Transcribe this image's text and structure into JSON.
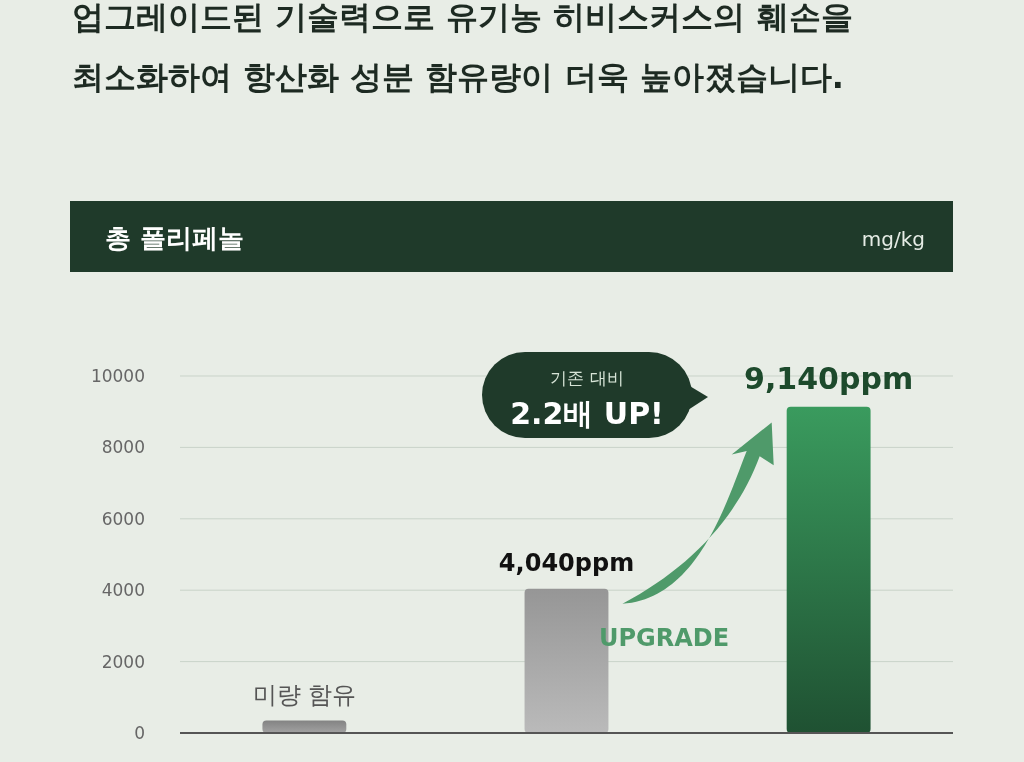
{
  "chart_data": {
    "type": "bar",
    "title": "업그레이드된 기술력으로 유기농 히비스커스의 훼손을",
    "subtitle": "최소화하여 항산화 성분 함유량이 더욱 높아졌습니다.",
    "categories": [
      null,
      null,
      null
    ],
    "values": [
      350,
      4040,
      9140
    ],
    "colors": [
      "#7a7a7a",
      "#8c8c8c",
      "#2f7d4c"
    ],
    "value_labels": [
      "미량 함유",
      "4,040ppm",
      "9,140ppm"
    ],
    "ylim": [
      0,
      10000
    ],
    "yticks": [
      0,
      2000,
      4000,
      6000,
      8000,
      10000
    ],
    "grid": "y",
    "annotations": [
      "총 폴리페놀",
      "mg/kg",
      "기존 대비",
      "2.2배 UP!",
      "UPGRADE"
    ]
  }
}
